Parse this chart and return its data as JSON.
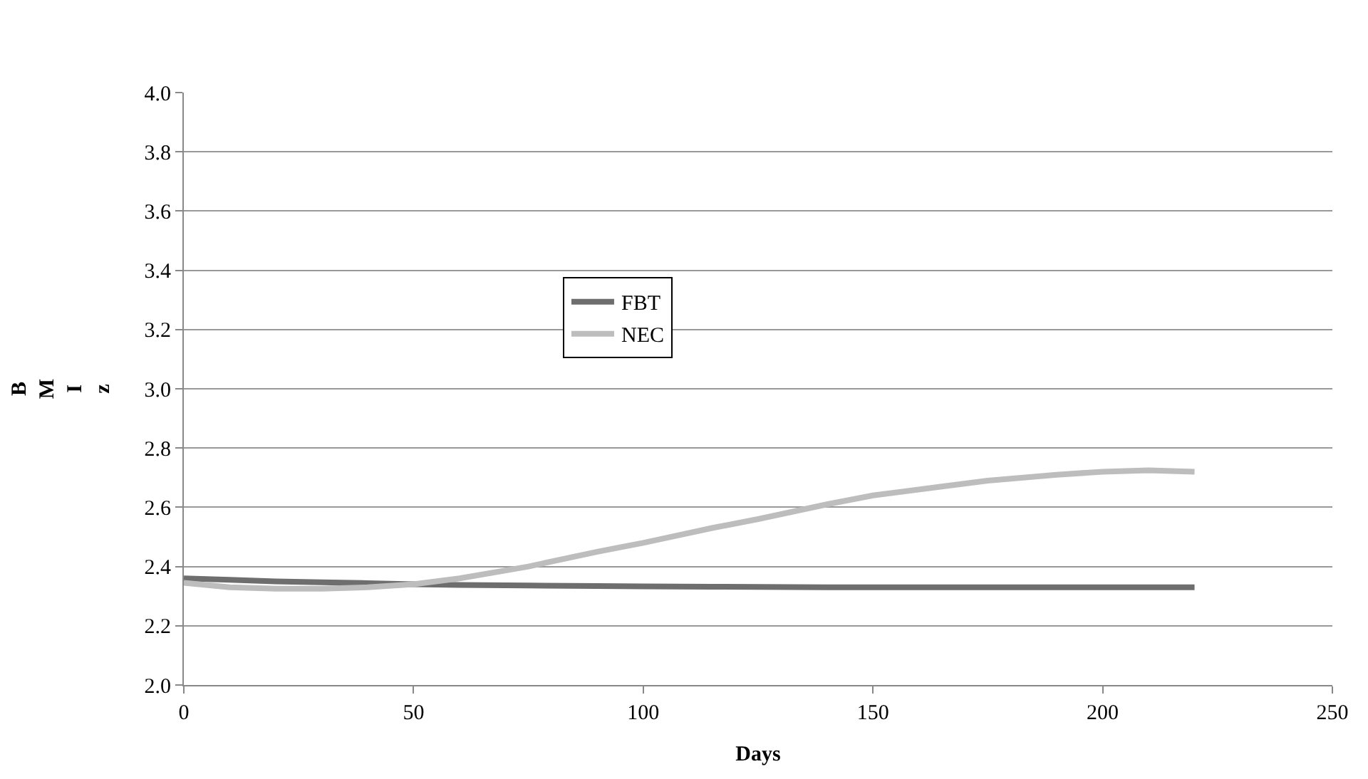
{
  "chart_data": {
    "type": "line",
    "xlabel": "Days",
    "ylabel": "BMIz",
    "x": [
      0,
      10,
      20,
      30,
      40,
      50,
      60,
      75,
      90,
      100,
      115,
      125,
      140,
      150,
      165,
      175,
      190,
      200,
      210,
      220
    ],
    "series": [
      {
        "name": "FBT",
        "color": "#6e6e6e",
        "values": [
          2.36,
          2.355,
          2.35,
          2.347,
          2.344,
          2.34,
          2.338,
          2.336,
          2.334,
          2.333,
          2.332,
          2.331,
          2.33,
          2.33,
          2.33,
          2.33,
          2.33,
          2.33,
          2.33,
          2.33
        ]
      },
      {
        "name": "NEC",
        "color": "#bdbdbd",
        "values": [
          2.345,
          2.33,
          2.325,
          2.325,
          2.33,
          2.34,
          2.36,
          2.4,
          2.45,
          2.48,
          2.53,
          2.56,
          2.61,
          2.64,
          2.67,
          2.69,
          2.71,
          2.72,
          2.725,
          2.72
        ]
      }
    ],
    "xlim": [
      0,
      250
    ],
    "xticks": [
      0,
      50,
      100,
      150,
      200,
      250
    ],
    "ylim": [
      2.0,
      4.0
    ],
    "yticks": [
      {
        "value": 2.0,
        "label": "2.0"
      },
      {
        "value": 2.2,
        "label": "2.2"
      },
      {
        "value": 2.4,
        "label": "2.4"
      },
      {
        "value": 2.6,
        "label": "2.6"
      },
      {
        "value": 2.8,
        "label": "2.8"
      },
      {
        "value": 3.0,
        "label": "3.0"
      },
      {
        "value": 3.2,
        "label": "3.2"
      },
      {
        "value": 3.4,
        "label": "3.4"
      },
      {
        "value": 3.6,
        "label": "3.6"
      },
      {
        "value": 3.8,
        "label": "3.8"
      },
      {
        "value": 4.0,
        "label": "4.0"
      }
    ],
    "grid": "y",
    "legend": "center",
    "marker": "none",
    "line_style": "solid"
  }
}
